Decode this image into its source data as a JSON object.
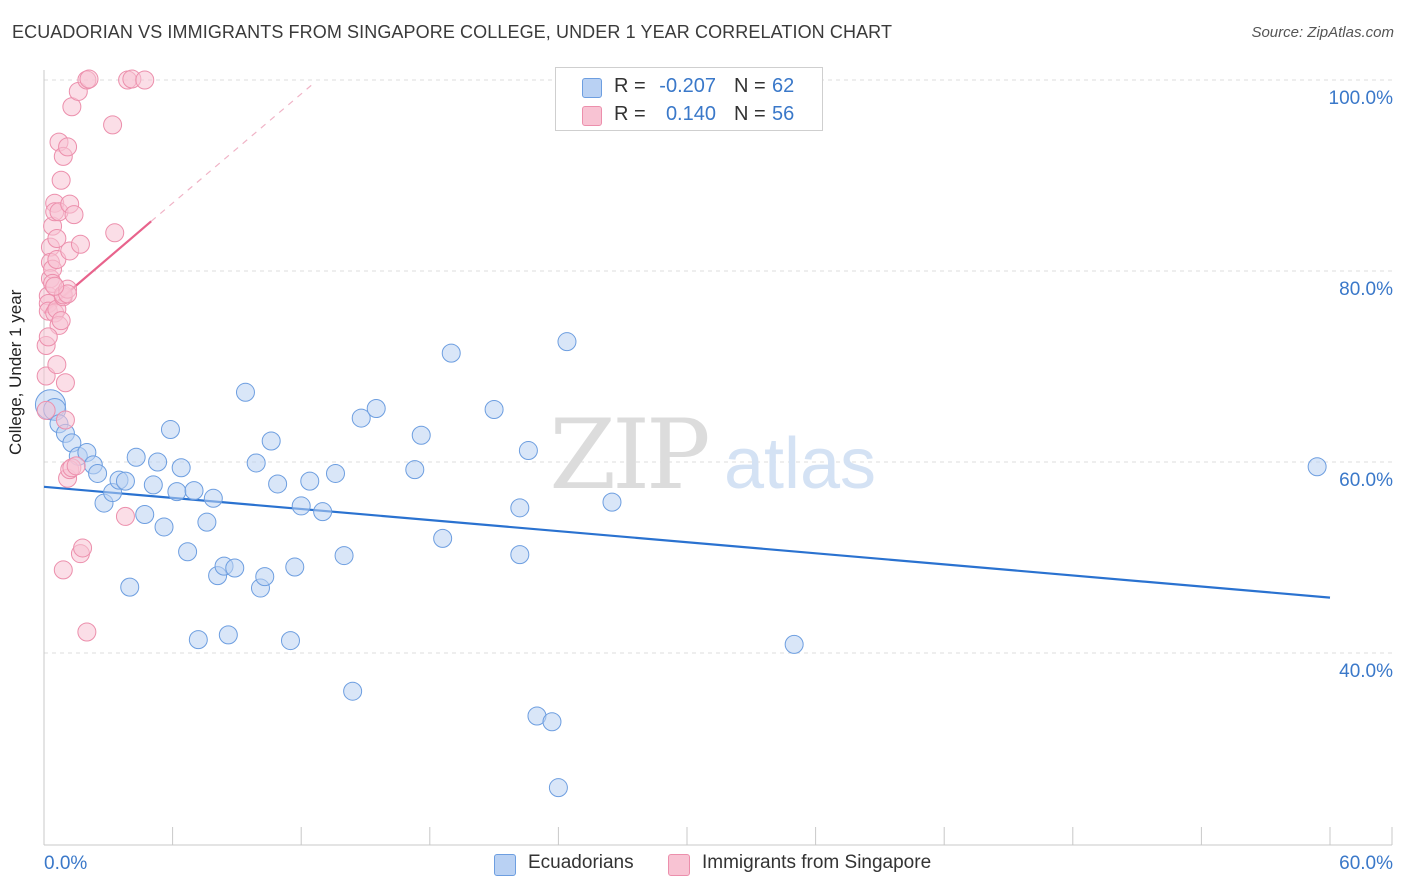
{
  "header": {
    "title": "ECUADORIAN VS IMMIGRANTS FROM SINGAPORE COLLEGE, UNDER 1 YEAR CORRELATION CHART",
    "source": "Source: ZipAtlas.com"
  },
  "watermark": {
    "zip": "ZIP",
    "atlas": "atlas"
  },
  "legend_top": {
    "rows": [
      {
        "r_label": "R =",
        "r_value": "-0.207",
        "n_label": "N =",
        "n_value": "62"
      },
      {
        "r_label": "R =",
        "r_value": "0.140",
        "n_label": "N =",
        "n_value": "56"
      }
    ]
  },
  "legend_bottom": {
    "items": [
      {
        "label": "Ecuadorians"
      },
      {
        "label": "Immigrants from Singapore"
      }
    ]
  },
  "colors": {
    "blue_fill": "#b9d1f3",
    "blue_stroke": "#6d9ee0",
    "blue_line": "#2a72d0",
    "pink_fill": "#f8c3d3",
    "pink_stroke": "#ec8fac",
    "pink_line": "#e8638c",
    "tick_text": "#3a78c9",
    "grid": "#dcdcdc"
  },
  "chart_data": {
    "type": "scatter",
    "title": "ECUADORIAN VS IMMIGRANTS FROM SINGAPORE COLLEGE, UNDER 1 YEAR CORRELATION CHART",
    "xlabel": "",
    "ylabel": "College, Under 1 year",
    "xlim": [
      0,
      60
    ],
    "ylim": [
      20,
      103
    ],
    "x_tick_labels": [
      "0.0%",
      "60.0%"
    ],
    "y_ticks": [
      40,
      60,
      80,
      100
    ],
    "y_tick_labels": [
      "40.0%",
      "60.0%",
      "80.0%",
      "100.0%"
    ],
    "grid": true,
    "series": [
      {
        "name": "Ecuadorians",
        "color": "blue",
        "r": -0.207,
        "n": 62,
        "trend": {
          "x0": 0,
          "y0": 57.4,
          "x1": 60,
          "y1": 45.8,
          "dashed_to": null
        },
        "points": [
          [
            0.3,
            66.0,
            14
          ],
          [
            0.5,
            65.5,
            10
          ],
          [
            0.7,
            64.0,
            8
          ],
          [
            1.0,
            63.0,
            8
          ],
          [
            1.3,
            62.0,
            8
          ],
          [
            1.6,
            60.6,
            8
          ],
          [
            2.0,
            61.0,
            8
          ],
          [
            2.3,
            59.7,
            8
          ],
          [
            2.5,
            58.8,
            8
          ],
          [
            2.8,
            55.7,
            8
          ],
          [
            3.2,
            56.8,
            8
          ],
          [
            3.5,
            58.1,
            8
          ],
          [
            3.8,
            58.0,
            8
          ],
          [
            4.0,
            46.9,
            8
          ],
          [
            4.3,
            60.5,
            8
          ],
          [
            4.7,
            54.5,
            8
          ],
          [
            5.1,
            57.6,
            8
          ],
          [
            5.3,
            60.0,
            8
          ],
          [
            5.6,
            53.2,
            8
          ],
          [
            5.9,
            63.4,
            8
          ],
          [
            6.2,
            56.9,
            8
          ],
          [
            6.4,
            59.4,
            8
          ],
          [
            6.7,
            50.6,
            8
          ],
          [
            7.0,
            57.0,
            8
          ],
          [
            7.2,
            41.4,
            8
          ],
          [
            7.6,
            53.7,
            8
          ],
          [
            7.9,
            56.2,
            8
          ],
          [
            8.1,
            48.1,
            8
          ],
          [
            8.4,
            49.1,
            8
          ],
          [
            8.6,
            41.9,
            8
          ],
          [
            8.9,
            48.9,
            8
          ],
          [
            9.4,
            67.3,
            8
          ],
          [
            9.9,
            59.9,
            8
          ],
          [
            10.1,
            46.8,
            8
          ],
          [
            10.3,
            48.0,
            8
          ],
          [
            10.6,
            62.2,
            8
          ],
          [
            10.9,
            57.7,
            8
          ],
          [
            11.5,
            41.3,
            8
          ],
          [
            11.7,
            49.0,
            8
          ],
          [
            12.0,
            55.4,
            8
          ],
          [
            12.4,
            58.0,
            8
          ],
          [
            13.0,
            54.8,
            8
          ],
          [
            13.6,
            58.8,
            8
          ],
          [
            14.0,
            50.2,
            8
          ],
          [
            14.4,
            36.0,
            8
          ],
          [
            14.8,
            64.6,
            8
          ],
          [
            15.5,
            65.6,
            8
          ],
          [
            17.3,
            59.2,
            8
          ],
          [
            17.6,
            62.8,
            8
          ],
          [
            18.6,
            52.0,
            8
          ],
          [
            19.0,
            71.4,
            8
          ],
          [
            21.0,
            65.5,
            8
          ],
          [
            22.2,
            55.2,
            8
          ],
          [
            22.2,
            50.3,
            8
          ],
          [
            22.6,
            61.2,
            8
          ],
          [
            23.0,
            33.4,
            8
          ],
          [
            23.7,
            32.8,
            8
          ],
          [
            24.0,
            25.9,
            8
          ],
          [
            24.4,
            72.6,
            8
          ],
          [
            26.5,
            55.8,
            8
          ],
          [
            35.0,
            40.9,
            8
          ],
          [
            59.4,
            59.5,
            8
          ]
        ]
      },
      {
        "name": "Immigrants from Singapore",
        "color": "pink",
        "r": 0.14,
        "n": 56,
        "trend": {
          "x0": 0,
          "y0": 75.6,
          "x1": 5.0,
          "y1": 85.2,
          "dashed_to": [
            12.5,
            99.5
          ]
        },
        "points": [
          [
            0.1,
            72.2,
            8
          ],
          [
            0.1,
            69.0,
            8
          ],
          [
            0.1,
            65.4,
            8
          ],
          [
            0.2,
            77.4,
            8
          ],
          [
            0.2,
            76.6,
            8
          ],
          [
            0.2,
            75.8,
            8
          ],
          [
            0.3,
            82.5,
            8
          ],
          [
            0.3,
            80.9,
            8
          ],
          [
            0.3,
            79.2,
            8
          ],
          [
            0.4,
            84.7,
            8
          ],
          [
            0.4,
            80.2,
            8
          ],
          [
            0.4,
            78.7,
            8
          ],
          [
            0.5,
            87.1,
            8
          ],
          [
            0.5,
            86.2,
            8
          ],
          [
            0.5,
            75.6,
            8
          ],
          [
            0.6,
            83.4,
            8
          ],
          [
            0.6,
            81.2,
            8
          ],
          [
            0.6,
            76.0,
            8
          ],
          [
            0.7,
            93.5,
            8
          ],
          [
            0.7,
            86.2,
            8
          ],
          [
            0.7,
            74.3,
            8
          ],
          [
            0.8,
            89.5,
            8
          ],
          [
            0.8,
            74.8,
            8
          ],
          [
            0.9,
            92.0,
            8
          ],
          [
            0.9,
            77.3,
            8
          ],
          [
            0.9,
            77.5,
            8
          ],
          [
            0.9,
            48.7,
            8
          ],
          [
            1.0,
            68.3,
            8
          ],
          [
            1.0,
            64.4,
            8
          ],
          [
            1.1,
            93.0,
            8
          ],
          [
            1.1,
            78.1,
            8
          ],
          [
            1.1,
            77.6,
            8
          ],
          [
            1.1,
            58.3,
            8
          ],
          [
            1.2,
            87.0,
            8
          ],
          [
            1.2,
            82.1,
            8
          ],
          [
            1.2,
            59.2,
            8
          ],
          [
            1.3,
            97.2,
            8
          ],
          [
            1.3,
            59.4,
            8
          ],
          [
            1.4,
            85.9,
            8
          ],
          [
            1.5,
            59.6,
            8
          ],
          [
            1.6,
            98.8,
            8
          ],
          [
            1.7,
            82.8,
            8
          ],
          [
            1.7,
            50.4,
            8
          ],
          [
            1.8,
            51.0,
            8
          ],
          [
            2.0,
            42.2,
            8
          ],
          [
            2.0,
            100.0,
            8
          ],
          [
            2.1,
            100.1,
            8
          ],
          [
            0.6,
            70.2,
            8
          ],
          [
            0.5,
            78.4,
            8
          ],
          [
            0.2,
            73.1,
            8
          ],
          [
            3.2,
            95.3,
            8
          ],
          [
            3.3,
            84.0,
            8
          ],
          [
            3.8,
            54.3,
            8
          ],
          [
            3.9,
            100.0,
            8
          ],
          [
            4.1,
            100.1,
            8
          ],
          [
            4.7,
            100.0,
            8
          ]
        ]
      }
    ]
  }
}
